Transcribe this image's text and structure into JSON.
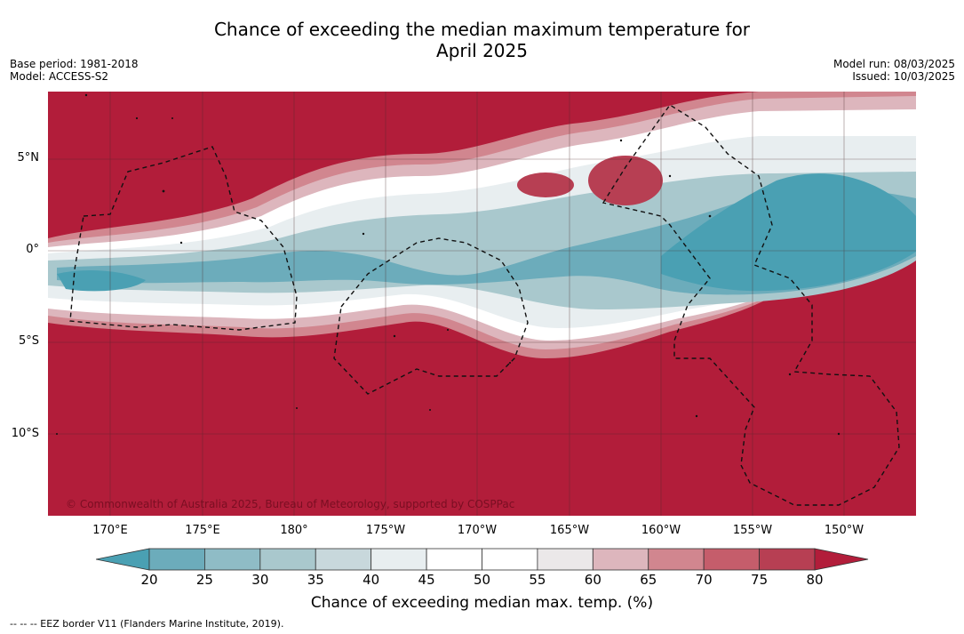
{
  "title_line1": "Chance of exceeding the median maximum temperature for",
  "title_line2": "April 2025",
  "base_period": "Base period: 1981-2018",
  "model": "Model: ACCESS-S2",
  "model_run": "Model run: 08/03/2025",
  "issued": "Issued: 10/03/2025",
  "copyright": "© Commonwealth of Australia 2025, Bureau of Meteorology, supported by COSPPac",
  "lat_labels": [
    "5°N",
    "0°",
    "5°S",
    "10°S"
  ],
  "lon_labels": [
    "170°E",
    "175°E",
    "180°",
    "175°W",
    "170°W",
    "165°W",
    "160°W",
    "155°W",
    "150°W"
  ],
  "colorbar": {
    "ticks": [
      "20",
      "25",
      "30",
      "35",
      "40",
      "45",
      "50",
      "55",
      "60",
      "65",
      "70",
      "75",
      "80"
    ],
    "colors": [
      "#4aa0b3",
      "#6cacbb",
      "#8fbcc6",
      "#a9c8cd",
      "#c8d8dc",
      "#e8eef0",
      "#ffffff",
      "#ffffff",
      "#ebe8e9",
      "#ddb6bd",
      "#d1868f",
      "#c55d6b",
      "#b73f53",
      "#b21d3a"
    ],
    "title": "Chance of exceeding median max. temp. (%)"
  },
  "eez_legend": "-- -- -- EEZ border V11 (Flanders Marine Institute, 2019)."
}
